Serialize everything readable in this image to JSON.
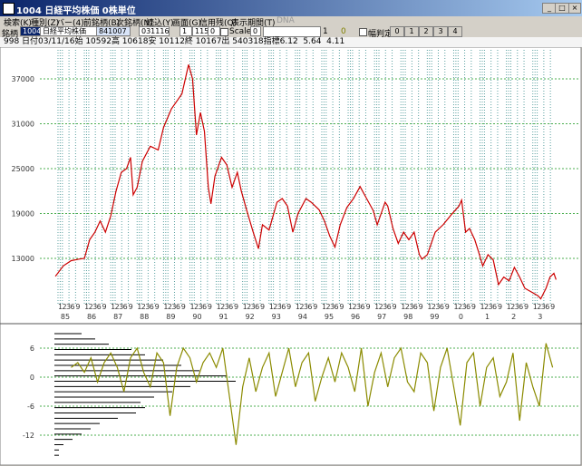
{
  "window": {
    "title": "1004 日経平均株価 0株単位"
  },
  "menu": [
    "検索(K)",
    "種別(Z)",
    "バー(4)",
    "前銘柄(B)",
    "次銘柄(N)",
    "読込(Y)",
    "画面(G)",
    "信用残(Q)",
    "表示期間(T)",
    "DNA"
  ],
  "toolbar": {
    "code_label": "銘柄",
    "code": "1004",
    "name": "日経平均株価",
    "start": "841007",
    "end": "031116",
    "field1": "1",
    "field2": "1150",
    "field3": "0",
    "scale_label": "Scale",
    "scale_value": "0",
    "position": "1",
    "position2": "0",
    "check_label": "幅判定",
    "buttons": [
      "0",
      "1",
      "2",
      "3",
      "4"
    ]
  },
  "info": "998 日付03/11/16始 10592高 10618安 10112終 10167出 540318指標6.12  5.64  4.11",
  "chart_data": [
    {
      "type": "line",
      "x": [
        1984.9,
        1985.2,
        1985.5,
        1985.8,
        1986,
        1986.2,
        1986.4,
        1986.6,
        1986.8,
        1987,
        1987.2,
        1987.4,
        1987.6,
        1987.75,
        1987.85,
        1988,
        1988.2,
        1988.5,
        1988.8,
        1989,
        1989.3,
        1989.5,
        1989.7,
        1989.95,
        1990.1,
        1990.25,
        1990.4,
        1990.55,
        1990.7,
        1990.8,
        1990.95,
        1991.2,
        1991.4,
        1991.6,
        1991.8,
        1991.95,
        1992.15,
        1992.4,
        1992.6,
        1992.75,
        1993,
        1993.3,
        1993.5,
        1993.7,
        1993.9,
        1994.1,
        1994.4,
        1994.6,
        1994.9,
        1995.1,
        1995.3,
        1995.5,
        1995.7,
        1995.95,
        1996.2,
        1996.45,
        1996.7,
        1996.95,
        1997.1,
        1997.4,
        1997.5,
        1997.7,
        1997.9,
        1998.1,
        1998.3,
        1998.5,
        1998.7,
        1998.8,
        1999,
        1999.3,
        1999.6,
        1999.9,
        2000.2,
        2000.3,
        2000.45,
        2000.6,
        2000.8,
        2000.95,
        2001.1,
        2001.3,
        2001.5,
        2001.7,
        2001.9,
        2002.1,
        2002.3,
        2002.5,
        2002.7,
        2002.95,
        2003.2,
        2003.3,
        2003.5,
        2003.65,
        2003.8,
        2003.88
      ],
      "series": [
        {
          "color": "#cc0000",
          "values": [
            10600,
            12000,
            12700,
            12900,
            13000,
            15500,
            16500,
            18000,
            16500,
            18700,
            22000,
            24500,
            25000,
            26500,
            21500,
            22500,
            26000,
            28000,
            27500,
            30500,
            33000,
            34000,
            35000,
            38900,
            37000,
            29500,
            32500,
            30000,
            22500,
            20300,
            24000,
            26500,
            25500,
            22500,
            24500,
            22000,
            19500,
            16500,
            14300,
            17500,
            16800,
            20500,
            21000,
            20000,
            16500,
            19000,
            21000,
            20500,
            19500,
            18000,
            16000,
            14500,
            17500,
            19800,
            21000,
            22600,
            21000,
            19400,
            17500,
            20500,
            20000,
            17000,
            15000,
            16500,
            15500,
            16500,
            13500,
            12900,
            13500,
            16500,
            17500,
            18800,
            20000,
            20800,
            16500,
            17000,
            15500,
            13800,
            12000,
            13500,
            12800,
            9500,
            10500,
            10000,
            11800,
            10500,
            9000,
            8500,
            8000,
            7600,
            9000,
            10500,
            11000,
            10167
          ]
        }
      ],
      "xlim": [
        1984.52,
        2004.28
      ],
      "ylim": [
        6940,
        40880
      ],
      "yticks": [
        13000,
        19000,
        25000,
        31000,
        37000
      ],
      "xticks": [
        {
          "value": 1985,
          "label": "85"
        },
        {
          "value": 1986,
          "label": "86"
        },
        {
          "value": 1987,
          "label": "87"
        },
        {
          "value": 1988,
          "label": "88"
        },
        {
          "value": 1989,
          "label": "89"
        },
        {
          "value": 1990,
          "label": "90"
        },
        {
          "value": 1991,
          "label": "91"
        },
        {
          "value": 1992,
          "label": "92"
        },
        {
          "value": 1993,
          "label": "93"
        },
        {
          "value": 1994,
          "label": "94"
        },
        {
          "value": 1995,
          "label": "95"
        },
        {
          "value": 1996,
          "label": "96"
        },
        {
          "value": 1997,
          "label": "97"
        },
        {
          "value": 1998,
          "label": "98"
        },
        {
          "value": 1999,
          "label": "99"
        },
        {
          "value": 2000,
          "label": "0"
        },
        {
          "value": 2001,
          "label": "1"
        },
        {
          "value": 2002,
          "label": "2"
        },
        {
          "value": 2003,
          "label": "3"
        }
      ],
      "month_ticks": [
        1,
        2,
        3,
        6,
        9
      ],
      "grid": true
    },
    {
      "type": "line",
      "x": [
        1985.5,
        1985.75,
        1986,
        1986.25,
        1986.5,
        1986.75,
        1987,
        1987.25,
        1987.5,
        1987.75,
        1988,
        1988.25,
        1988.5,
        1988.75,
        1989,
        1989.25,
        1989.5,
        1989.75,
        1990,
        1990.25,
        1990.5,
        1990.75,
        1991,
        1991.25,
        1991.5,
        1991.75,
        1992,
        1992.25,
        1992.5,
        1992.75,
        1993,
        1993.25,
        1993.5,
        1993.75,
        1994,
        1994.25,
        1994.5,
        1994.75,
        1995,
        1995.25,
        1995.5,
        1995.75,
        1996,
        1996.25,
        1996.5,
        1996.75,
        1997,
        1997.25,
        1997.5,
        1997.75,
        1998,
        1998.25,
        1998.5,
        1998.75,
        1999,
        1999.25,
        1999.5,
        1999.75,
        2000,
        2000.25,
        2000.5,
        2000.75,
        2001,
        2001.25,
        2001.5,
        2001.75,
        2002,
        2002.25,
        2002.5,
        2002.75,
        2003,
        2003.25,
        2003.5,
        2003.75
      ],
      "series": [
        {
          "color": "#8b8b00",
          "values": [
            2,
            3,
            1,
            4,
            -1,
            3,
            5,
            2,
            -3,
            4,
            6,
            1,
            -2,
            5,
            3,
            -8,
            2,
            6,
            4,
            -1,
            3,
            5,
            2,
            6,
            -4,
            -14,
            -2,
            4,
            -3,
            2,
            5,
            -4,
            1,
            6,
            -2,
            3,
            5,
            -5,
            0,
            4,
            -1,
            5,
            2,
            -3,
            6,
            -6,
            1,
            5,
            -2,
            4,
            6,
            -1,
            -3,
            5,
            3,
            -7,
            2,
            6,
            -2,
            -10,
            3,
            5,
            -6,
            2,
            4,
            -4,
            -1,
            5,
            -9,
            3,
            -2,
            -6,
            7,
            2
          ]
        }
      ],
      "xlim": [
        1984.52,
        2004.28
      ],
      "ylim": [
        -18,
        10.5
      ],
      "yticks": [
        -12,
        -6,
        0,
        6
      ],
      "grid": true,
      "volume_profile": [
        30,
        45,
        60,
        85,
        100,
        120,
        140,
        160,
        190,
        200,
        150,
        130,
        110,
        95,
        100,
        90,
        70,
        50,
        40,
        30,
        20,
        10,
        5,
        5
      ]
    }
  ]
}
